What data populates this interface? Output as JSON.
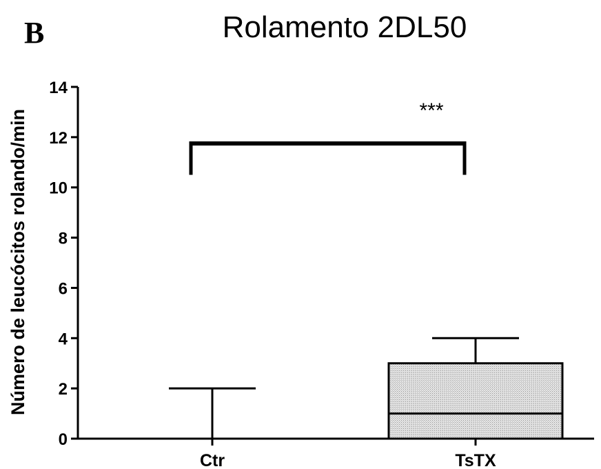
{
  "panel_label": "B",
  "chart_data": {
    "type": "box",
    "title": "Rolamento 2DL50",
    "xlabel": "",
    "ylabel": "Número de leucócitos rolando/min",
    "ylim": [
      0,
      14
    ],
    "yticks": [
      0,
      2,
      4,
      6,
      8,
      10,
      12,
      14
    ],
    "categories": [
      "Ctr",
      "TsTX"
    ],
    "boxes": [
      {
        "category": "Ctr",
        "whisker_low": 0,
        "q1": 0,
        "median": 0,
        "q3": 0,
        "whisker_high": 2,
        "fill": "none"
      },
      {
        "category": "TsTX",
        "whisker_low": 0,
        "q1": 0,
        "median": 1,
        "q3": 3,
        "whisker_high": 4,
        "fill": "stippled-gray"
      }
    ],
    "significance": {
      "label": "***",
      "between": [
        "Ctr",
        "TsTX"
      ],
      "bracket_y": 11.75,
      "bracket_drop_to": 10.5
    },
    "grid": false,
    "legend": "none"
  },
  "colors": {
    "axis": "#000000",
    "box_fill": "#e4e4e4",
    "stipple": "#9a9a9a"
  }
}
